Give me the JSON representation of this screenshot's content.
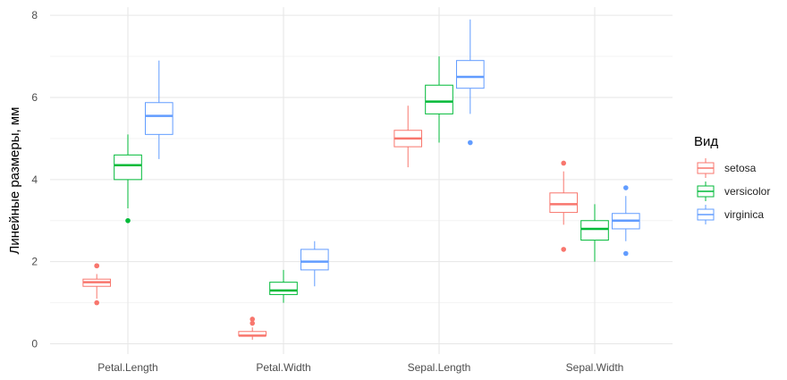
{
  "chart_data": {
    "type": "boxplot",
    "categories": [
      "Petal.Length",
      "Petal.Width",
      "Sepal.Length",
      "Sepal.Width"
    ],
    "ylabel": "Линейные размеры, мм",
    "ylim": [
      -0.25,
      8.2
    ],
    "yticks": [
      0,
      2,
      4,
      6,
      8
    ],
    "grid": true,
    "legend_title": "Вид",
    "legend_position": "right",
    "series": [
      {
        "name": "setosa",
        "color": "#F8766D",
        "boxes": [
          {
            "whisker_low": 1.1,
            "q1": 1.4,
            "median": 1.5,
            "q3": 1.575,
            "whisker_high": 1.7,
            "outliers": [
              1.0,
              1.9,
              1.9
            ]
          },
          {
            "whisker_low": 0.1,
            "q1": 0.2,
            "median": 0.2,
            "q3": 0.3,
            "whisker_high": 0.4,
            "outliers": [
              0.5,
              0.6
            ]
          },
          {
            "whisker_low": 4.3,
            "q1": 4.8,
            "median": 5.0,
            "q3": 5.2,
            "whisker_high": 5.8,
            "outliers": []
          },
          {
            "whisker_low": 2.9,
            "q1": 3.2,
            "median": 3.4,
            "q3": 3.675,
            "whisker_high": 4.2,
            "outliers": [
              2.3,
              4.4
            ]
          }
        ]
      },
      {
        "name": "versicolor",
        "color": "#00BA38",
        "boxes": [
          {
            "whisker_low": 3.3,
            "q1": 4.0,
            "median": 4.35,
            "q3": 4.6,
            "whisker_high": 5.1,
            "outliers": [
              3.0
            ]
          },
          {
            "whisker_low": 1.0,
            "q1": 1.2,
            "median": 1.3,
            "q3": 1.5,
            "whisker_high": 1.8,
            "outliers": []
          },
          {
            "whisker_low": 4.9,
            "q1": 5.6,
            "median": 5.9,
            "q3": 6.3,
            "whisker_high": 7.0,
            "outliers": []
          },
          {
            "whisker_low": 2.0,
            "q1": 2.525,
            "median": 2.8,
            "q3": 3.0,
            "whisker_high": 3.4,
            "outliers": []
          }
        ]
      },
      {
        "name": "virginica",
        "color": "#619CFF",
        "boxes": [
          {
            "whisker_low": 4.5,
            "q1": 5.1,
            "median": 5.55,
            "q3": 5.875,
            "whisker_high": 6.9,
            "outliers": []
          },
          {
            "whisker_low": 1.4,
            "q1": 1.8,
            "median": 2.0,
            "q3": 2.3,
            "whisker_high": 2.5,
            "outliers": []
          },
          {
            "whisker_low": 5.6,
            "q1": 6.225,
            "median": 6.5,
            "q3": 6.9,
            "whisker_high": 7.9,
            "outliers": [
              4.9
            ]
          },
          {
            "whisker_low": 2.5,
            "q1": 2.8,
            "median": 3.0,
            "q3": 3.175,
            "whisker_high": 3.6,
            "outliers": [
              2.2,
              3.8
            ]
          }
        ]
      }
    ]
  }
}
